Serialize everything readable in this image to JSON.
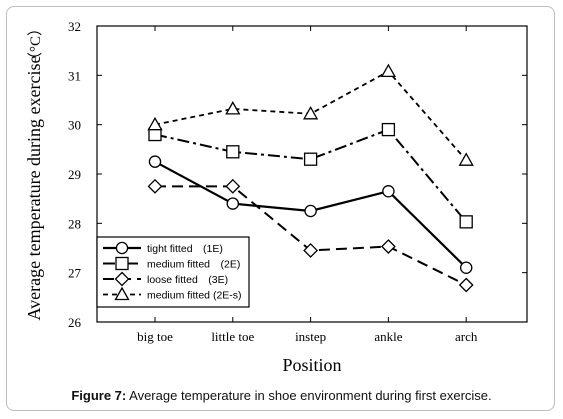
{
  "caption": {
    "label": "Figure 7:",
    "text": "Average temperature in shoe environment during first exercise."
  },
  "chart_data": {
    "type": "line",
    "title": "",
    "xlabel": "Position",
    "ylabel": "Average temperature during exercise",
    "ylabel_unit": "（°C）",
    "categories": [
      "big toe",
      "little toe",
      "instep",
      "ankle",
      "arch"
    ],
    "ylim": [
      26,
      32
    ],
    "yticks": [
      "26",
      "27",
      "28",
      "29",
      "30",
      "31",
      "32"
    ],
    "grid": false,
    "legend_position": "bottom-left",
    "series": [
      {
        "name": "tight fitted　(1E)",
        "marker": "circle",
        "dash": "solid",
        "values": [
          29.25,
          28.4,
          28.25,
          28.65,
          27.1
        ]
      },
      {
        "name": "medium fitted　(2E)",
        "marker": "square",
        "dash": "dashdot",
        "values": [
          29.8,
          29.45,
          29.3,
          29.9,
          28.03
        ]
      },
      {
        "name": "loose fitted　(3E)",
        "marker": "diamond",
        "dash": "longdash",
        "values": [
          28.75,
          28.75,
          27.45,
          27.53,
          26.75
        ]
      },
      {
        "name": "medium fitted (2E-s)",
        "marker": "triangle",
        "dash": "shortdash",
        "values": [
          30.0,
          30.32,
          30.22,
          31.08,
          29.28
        ]
      }
    ]
  }
}
